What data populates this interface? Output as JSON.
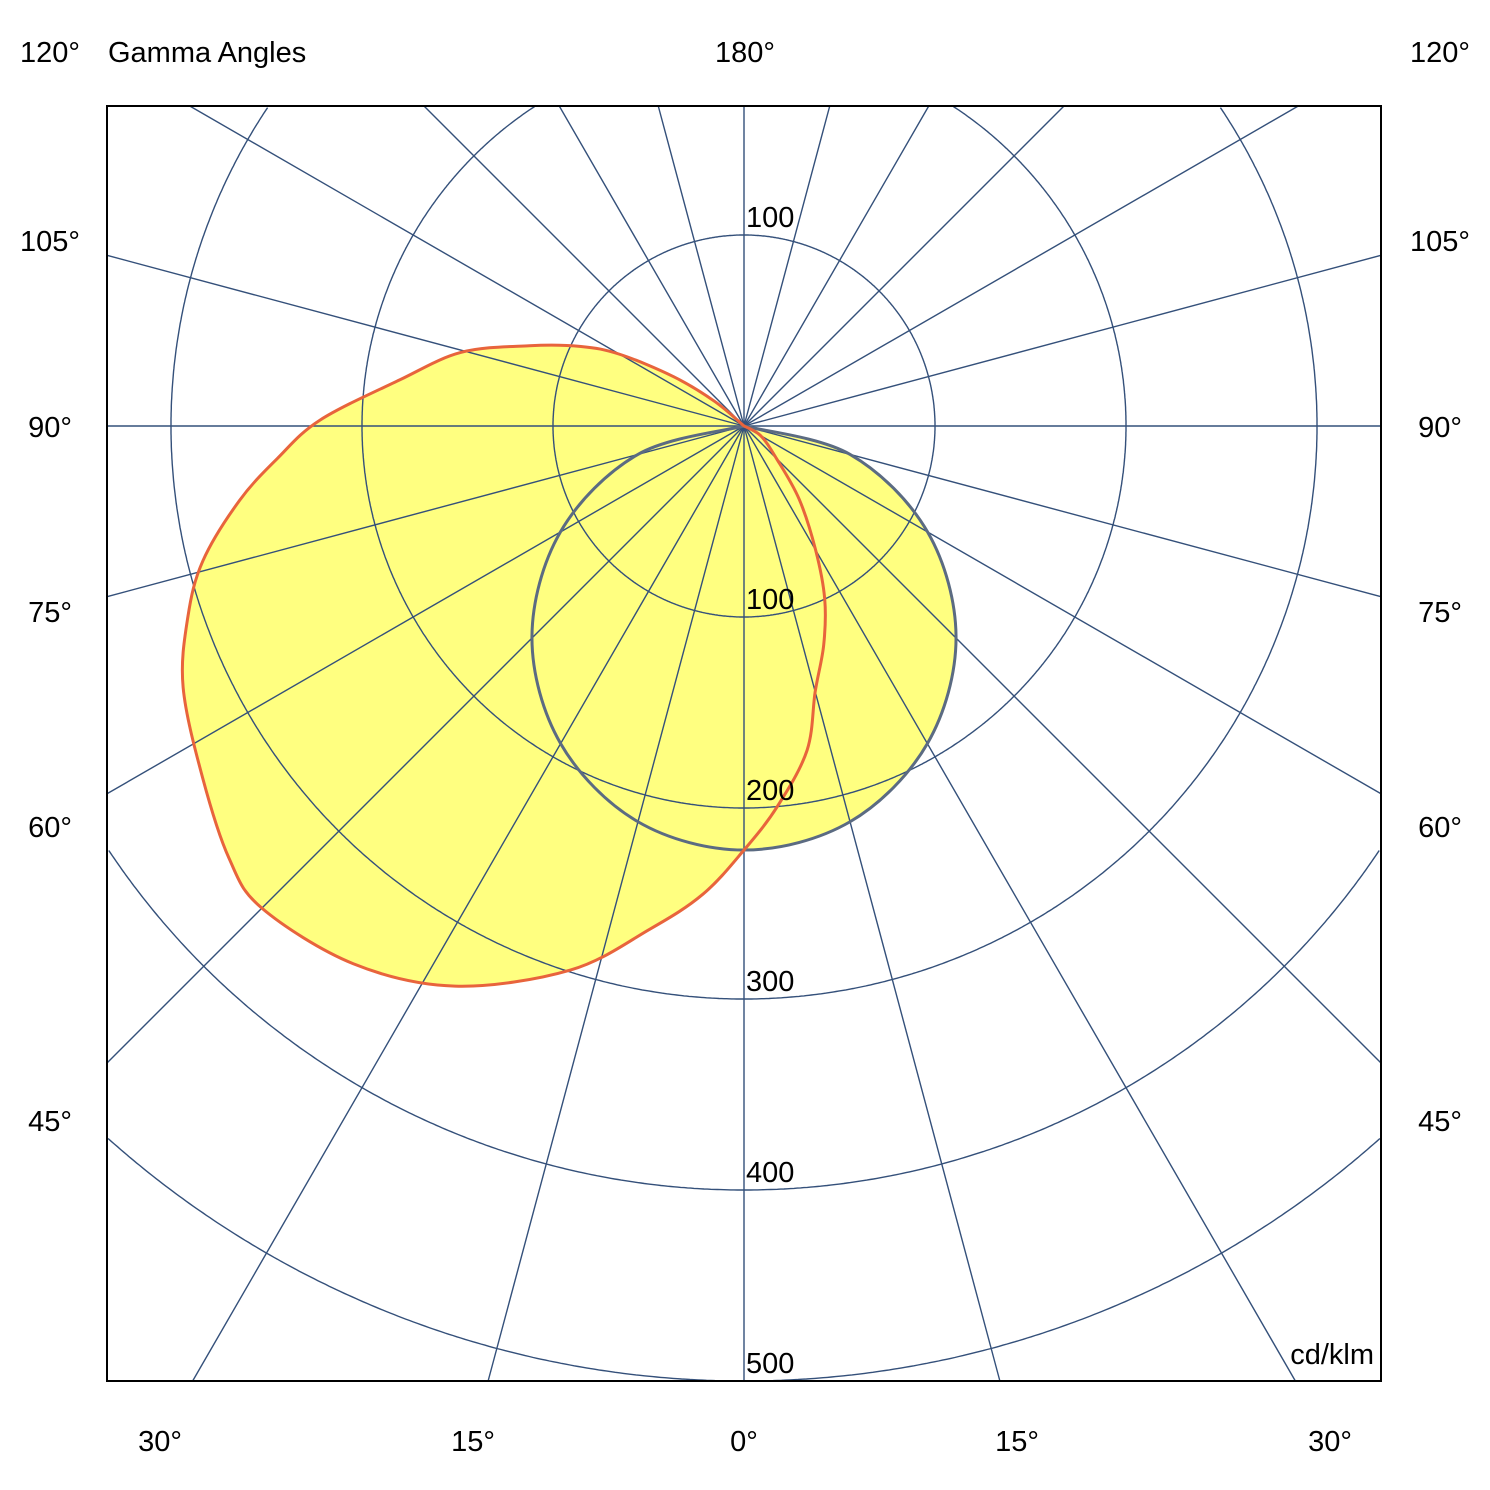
{
  "chart_data": {
    "type": "polar",
    "title": "Gamma Angles",
    "unit_label": "cd/klm",
    "radial_ticks": [
      100,
      200,
      300,
      400,
      500
    ],
    "radial_tick_labels_upper": [
      "100"
    ],
    "radial_tick_labels_lower": [
      "100",
      "200",
      "300",
      "400",
      "500"
    ],
    "radial_max": 500,
    "angle_step_deg": 15,
    "angle_labels": {
      "top": [
        "120°",
        "180°",
        "120°"
      ],
      "left": [
        "105°",
        "90°",
        "75°",
        "60°",
        "45°"
      ],
      "right": [
        "105°",
        "90°",
        "75°",
        "60°",
        "45°"
      ],
      "bottom": [
        "30°",
        "15°",
        "0°",
        "15°",
        "30°"
      ]
    },
    "grid": true,
    "colors": {
      "grid": "#34507a",
      "fill": "#ffff80",
      "plane_a": "#5b6b82",
      "plane_b": "#e8643c"
    },
    "series": [
      {
        "color": "#5b6b82",
        "points_gamma_intensity": [
          [
            -90,
            0
          ],
          [
            -75,
            57.5
          ],
          [
            -60,
            111
          ],
          [
            -45,
            157
          ],
          [
            -30,
            192
          ],
          [
            -15,
            214.5
          ],
          [
            0,
            222
          ],
          [
            15,
            214.5
          ],
          [
            30,
            192
          ],
          [
            45,
            157
          ],
          [
            60,
            111
          ],
          [
            75,
            57.5
          ],
          [
            90,
            0
          ]
        ]
      },
      {
        "color": "#e8643c",
        "points_gamma_intensity": [
          [
            -90,
            0
          ],
          [
            -60,
            10
          ],
          [
            -45,
            24
          ],
          [
            -37,
            48
          ],
          [
            -30,
            75
          ],
          [
            -25,
            100
          ],
          [
            -20,
            122
          ],
          [
            -15,
            144
          ],
          [
            -11,
            173
          ],
          [
            -5,
            200
          ],
          [
            0,
            222
          ],
          [
            5,
            246
          ],
          [
            10.6,
            268
          ],
          [
            17.7,
            299
          ],
          [
            27.3,
            330
          ],
          [
            36,
            348
          ],
          [
            45,
            357
          ],
          [
            50,
            352
          ],
          [
            57,
            338
          ],
          [
            65,
            324
          ],
          [
            71,
            308
          ],
          [
            76,
            292
          ],
          [
            81.6,
            267
          ],
          [
            86,
            245
          ],
          [
            90.8,
            222
          ],
          [
            97.6,
            182
          ],
          [
            104.6,
            153
          ],
          [
            110.5,
            120
          ],
          [
            116,
            95
          ],
          [
            120,
            75
          ],
          [
            125,
            45
          ],
          [
            130,
            20
          ],
          [
            140,
            0
          ]
        ]
      }
    ]
  }
}
